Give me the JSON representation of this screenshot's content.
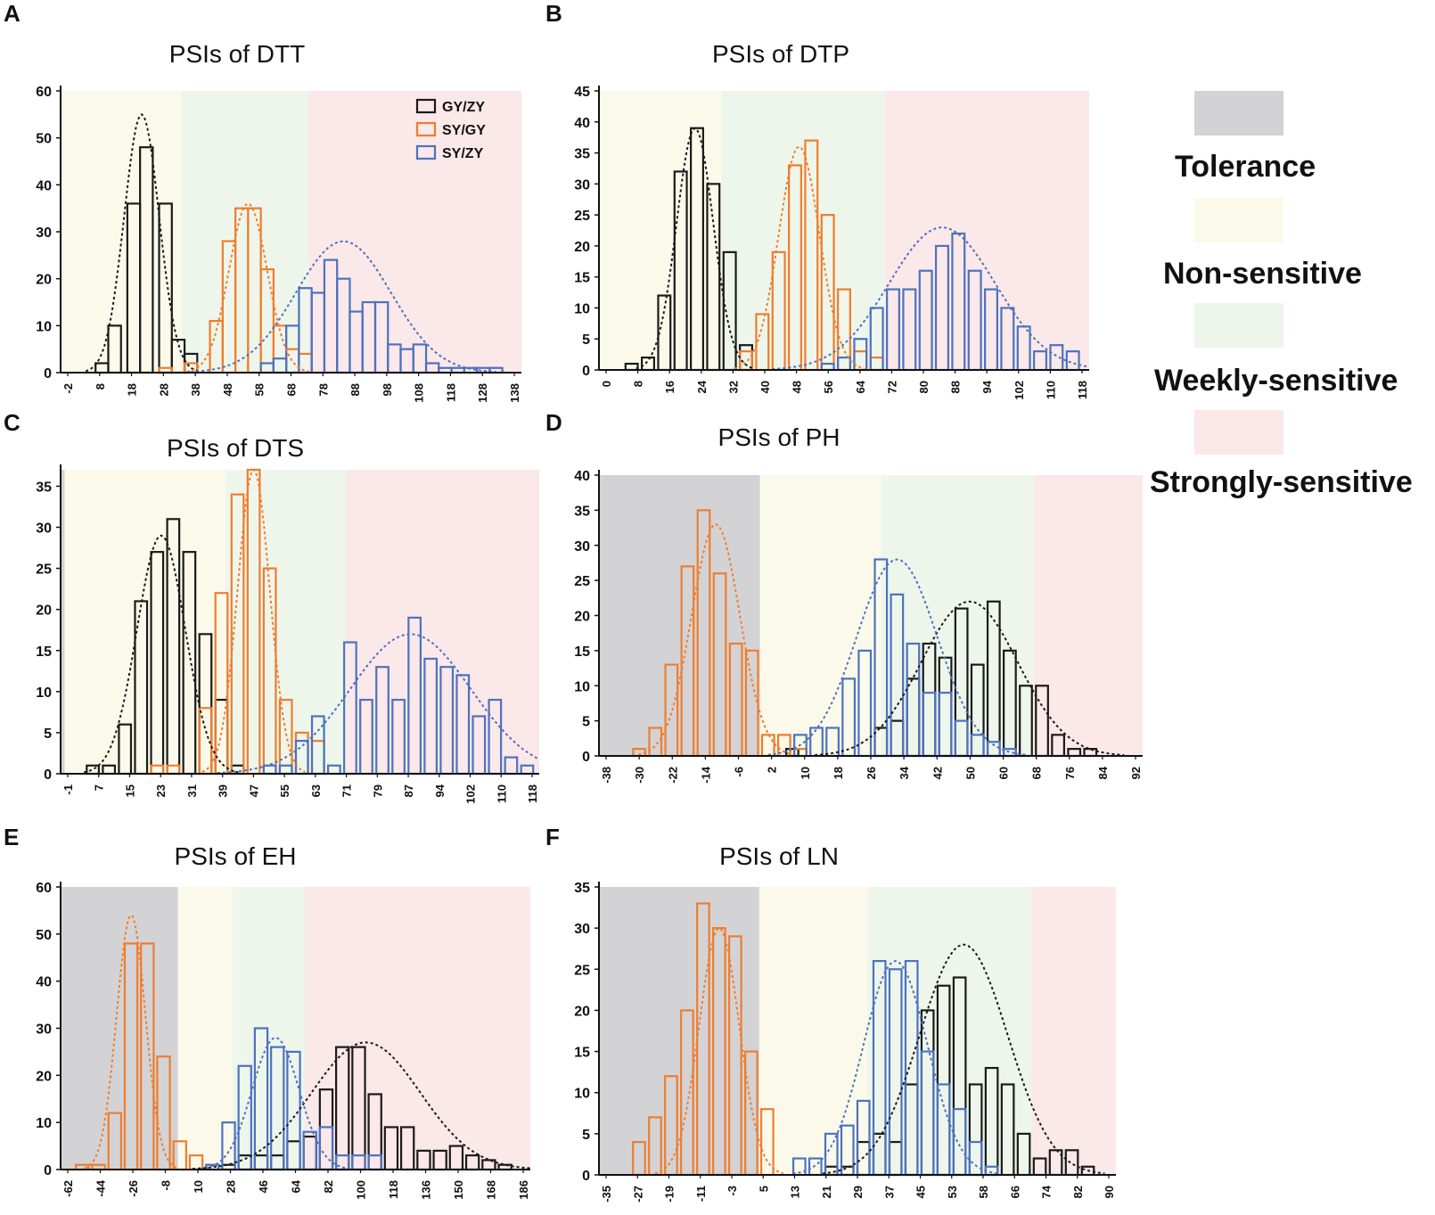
{
  "colors": {
    "tolerance_zone": "#d3d3d6",
    "nonsensitive_zone": "#fbfaea",
    "weekly_zone": "#eef6eb",
    "strongly_zone": "#fbe8e8",
    "gyzy": "#1a1a1a",
    "sygy": "#ef7d2d",
    "syzy": "#4c72c0"
  },
  "legend": {
    "items": [
      {
        "label": "Tolerance",
        "color": "#d3d3d6"
      },
      {
        "label": "Non-sensitive",
        "color": "#fbfaea"
      },
      {
        "label": "Weekly-sensitive",
        "color": "#eef6eb"
      },
      {
        "label": "Strongly-sensitive",
        "color": "#fbe8e8"
      }
    ]
  },
  "series_legend": [
    "GY/ZY",
    "SY/GY",
    "SY/ZY"
  ],
  "chart_data": [
    {
      "panel": "A",
      "type": "bar",
      "title": "PSIs of DTT",
      "ylim": [
        0,
        60
      ],
      "yticks": [
        0,
        10,
        20,
        30,
        40,
        50,
        60
      ],
      "xticks": [
        "-2",
        "8",
        "18",
        "28",
        "38",
        "48",
        "58",
        "68",
        "78",
        "88",
        "98",
        "108",
        "118",
        "128",
        "138"
      ],
      "xmin": -5,
      "xmax": 140,
      "bin_width": 4,
      "zones": [
        {
          "name": "Non-sensitive",
          "from": -5,
          "to": 33
        },
        {
          "name": "Weekly-sensitive",
          "from": 33,
          "to": 73
        },
        {
          "name": "Strongly-sensitive",
          "from": 73,
          "to": 140
        }
      ],
      "series": [
        {
          "name": "GY/ZY",
          "bins": [
            8,
            12,
            18,
            22,
            28,
            32,
            36
          ],
          "values": [
            2,
            10,
            36,
            48,
            36,
            7,
            4
          ],
          "curve": {
            "mean": 20.5,
            "sd": 5.5,
            "peak": 55
          }
        },
        {
          "name": "SY/GY",
          "bins": [
            28,
            36,
            44,
            48,
            52,
            56,
            60,
            64,
            68,
            72
          ],
          "values": [
            1,
            2,
            11,
            28,
            35,
            35,
            22,
            10,
            5,
            4
          ],
          "curve": {
            "mean": 54,
            "sd": 6,
            "peak": 36
          }
        },
        {
          "name": "SY/ZY",
          "bins": [
            60,
            64,
            68,
            72,
            76,
            80,
            84,
            88,
            92,
            96,
            100,
            104,
            108,
            112,
            116,
            120,
            124,
            128,
            132
          ],
          "values": [
            2,
            3,
            10,
            18,
            17,
            24,
            20,
            13,
            15,
            15,
            6,
            5,
            6,
            2,
            1,
            1,
            1,
            1,
            1
          ],
          "curve": {
            "mean": 84,
            "sd": 15,
            "peak": 28
          }
        }
      ]
    },
    {
      "panel": "B",
      "type": "bar",
      "title": "PSIs of DTP",
      "ylim": [
        0,
        45
      ],
      "yticks": [
        0,
        5,
        10,
        15,
        20,
        25,
        30,
        35,
        40,
        45
      ],
      "xticks": [
        "0",
        "8",
        "16",
        "24",
        "32",
        "40",
        "48",
        "56",
        "64",
        "72",
        "80",
        "88",
        "94",
        "102",
        "110",
        "118"
      ],
      "xmin": 0,
      "xmax": 120,
      "bin_width": 3,
      "zones": [
        {
          "name": "Non-sensitive",
          "from": 0,
          "to": 30
        },
        {
          "name": "Weekly-sensitive",
          "from": 30,
          "to": 70
        },
        {
          "name": "Strongly-sensitive",
          "from": 70,
          "to": 120
        }
      ],
      "series": [
        {
          "name": "GY/ZY",
          "bins": [
            8,
            12,
            16,
            20,
            24,
            28,
            32,
            36
          ],
          "values": [
            1,
            2,
            12,
            32,
            39,
            30,
            19,
            4
          ],
          "curve": {
            "mean": 23.5,
            "sd": 4.5,
            "peak": 39
          }
        },
        {
          "name": "SY/GY",
          "bins": [
            36,
            40,
            44,
            48,
            52,
            56,
            60,
            64,
            68
          ],
          "values": [
            3,
            9,
            19,
            33,
            37,
            25,
            13,
            3,
            2
          ],
          "curve": {
            "mean": 49,
            "sd": 5,
            "peak": 36
          }
        },
        {
          "name": "SY/ZY",
          "bins": [
            56,
            60,
            64,
            68,
            72,
            76,
            80,
            84,
            88,
            92,
            96,
            100,
            104,
            108,
            112,
            116
          ],
          "values": [
            1,
            2,
            5,
            10,
            13,
            13,
            16,
            20,
            22,
            16,
            13,
            10,
            7,
            3,
            4,
            3
          ],
          "curve": {
            "mean": 84,
            "sd": 13,
            "peak": 23
          }
        }
      ]
    },
    {
      "panel": "C",
      "type": "bar",
      "title": "PSIs of DTS",
      "ylim": [
        0,
        37
      ],
      "yticks": [
        0,
        5,
        10,
        15,
        20,
        25,
        30,
        35
      ],
      "xticks": [
        "-1",
        "7",
        "15",
        "23",
        "31",
        "39",
        "47",
        "55",
        "63",
        "71",
        "79",
        "87",
        "94",
        "102",
        "110",
        "118"
      ],
      "xmin": -1,
      "xmax": 118,
      "bin_width": 3,
      "zones": [
        {
          "name": "Tolerance",
          "from": -1,
          "to": 0
        },
        {
          "name": "Non-sensitive",
          "from": 0,
          "to": 40
        },
        {
          "name": "Weekly-sensitive",
          "from": 40,
          "to": 70
        },
        {
          "name": "Strongly-sensitive",
          "from": 70,
          "to": 118
        }
      ],
      "series": [
        {
          "name": "GY/ZY",
          "bins": [
            7,
            11,
            15,
            19,
            23,
            27,
            31,
            35,
            39,
            43
          ],
          "values": [
            1,
            1,
            6,
            21,
            27,
            31,
            27,
            17,
            9,
            1
          ],
          "curve": {
            "mean": 24,
            "sd": 6,
            "peak": 29
          }
        },
        {
          "name": "SY/GY",
          "bins": [
            23,
            27,
            35,
            39,
            43,
            47,
            51,
            55,
            59,
            63
          ],
          "values": [
            1,
            1,
            8,
            22,
            34,
            37,
            25,
            9,
            5,
            4
          ],
          "curve": {
            "mean": 47,
            "sd": 4,
            "peak": 37
          }
        },
        {
          "name": "SY/ZY",
          "bins": [
            51,
            55,
            59,
            63,
            67,
            71,
            75,
            79,
            83,
            87,
            91,
            95,
            99,
            103,
            107,
            111,
            115
          ],
          "values": [
            1,
            1,
            4,
            7,
            1,
            16,
            9,
            13,
            9,
            19,
            14,
            13,
            12,
            7,
            9,
            2,
            1
          ],
          "curve": {
            "mean": 86,
            "sd": 15,
            "peak": 17
          }
        }
      ]
    },
    {
      "panel": "D",
      "type": "bar",
      "title": "PSIs of PH",
      "ylim": [
        0,
        40
      ],
      "yticks": [
        0,
        5,
        10,
        15,
        20,
        25,
        30,
        35,
        40
      ],
      "xticks": [
        "-38",
        "-30",
        "-22",
        "-14",
        "-6",
        "2",
        "10",
        "18",
        "26",
        "34",
        "42",
        "50",
        "60",
        "68",
        "76",
        "84",
        "92"
      ],
      "xmin": -40,
      "xmax": 95,
      "bin_width": 3,
      "zones": [
        {
          "name": "Tolerance",
          "from": -40,
          "to": 0
        },
        {
          "name": "Non-sensitive",
          "from": 0,
          "to": 30
        },
        {
          "name": "Weekly-sensitive",
          "from": 30,
          "to": 68
        },
        {
          "name": "Strongly-sensitive",
          "from": 68,
          "to": 95
        }
      ],
      "series": [
        {
          "name": "GY/ZY",
          "bins": [
            8,
            30,
            34,
            38,
            42,
            46,
            50,
            54,
            58,
            62,
            66,
            70,
            74,
            78,
            82
          ],
          "values": [
            1,
            4,
            5,
            11,
            16,
            14,
            21,
            13,
            22,
            15,
            10,
            10,
            3,
            1,
            1
          ],
          "curve": {
            "mean": 52,
            "sd": 12,
            "peak": 22
          }
        },
        {
          "name": "SY/GY",
          "bins": [
            -30,
            -26,
            -22,
            -18,
            -14,
            -10,
            -6,
            -2,
            2,
            6,
            10
          ],
          "values": [
            1,
            4,
            13,
            27,
            35,
            26,
            16,
            15,
            3,
            3,
            1
          ],
          "curve": {
            "mean": -11,
            "sd": 6,
            "peak": 33
          }
        },
        {
          "name": "SY/ZY",
          "bins": [
            10,
            14,
            18,
            22,
            26,
            30,
            34,
            38,
            42,
            46,
            50,
            54,
            58,
            62
          ],
          "values": [
            3,
            4,
            4,
            11,
            15,
            28,
            23,
            16,
            9,
            9,
            5,
            3,
            2,
            1
          ],
          "curve": {
            "mean": 34,
            "sd": 10,
            "peak": 28
          }
        }
      ]
    },
    {
      "panel": "E",
      "type": "bar",
      "title": "PSIs of EH",
      "ylim": [
        0,
        60
      ],
      "yticks": [
        0,
        10,
        20,
        30,
        40,
        50,
        60
      ],
      "xticks": [
        "-62",
        "-44",
        "-26",
        "-8",
        "10",
        "28",
        "46",
        "64",
        "82",
        "100",
        "118",
        "136",
        "150",
        "168",
        "186"
      ],
      "xmin": -65,
      "xmax": 195,
      "bin_width": 7,
      "zones": [
        {
          "name": "Tolerance",
          "from": -65,
          "to": 0
        },
        {
          "name": "Non-sensitive",
          "from": 0,
          "to": 30
        },
        {
          "name": "Weekly-sensitive",
          "from": 30,
          "to": 70
        },
        {
          "name": "Strongly-sensitive",
          "from": 70,
          "to": 195
        }
      ],
      "series": [
        {
          "name": "GY/ZY",
          "bins": [
            28,
            37,
            46,
            55,
            64,
            73,
            82,
            91,
            100,
            109,
            118,
            127,
            136,
            145,
            154,
            163,
            172,
            181
          ],
          "values": [
            1,
            3,
            3,
            3,
            6,
            7,
            17,
            26,
            26,
            16,
            9,
            9,
            4,
            4,
            5,
            3,
            2,
            1
          ],
          "curve": {
            "mean": 104,
            "sd": 30,
            "peak": 27
          }
        },
        {
          "name": "SY/GY",
          "bins": [
            -53,
            -44,
            -35,
            -26,
            -17,
            -8,
            1,
            10,
            19
          ],
          "values": [
            1,
            1,
            12,
            48,
            48,
            24,
            6,
            3,
            1
          ],
          "curve": {
            "mean": -26,
            "sd": 8,
            "peak": 54
          }
        },
        {
          "name": "SY/ZY",
          "bins": [
            19,
            28,
            37,
            46,
            55,
            64,
            73,
            82,
            91,
            100,
            109
          ],
          "values": [
            1,
            10,
            22,
            30,
            26,
            25,
            8,
            9,
            3,
            3,
            3
          ],
          "curve": {
            "mean": 54,
            "sd": 13,
            "peak": 28
          }
        }
      ]
    },
    {
      "panel": "F",
      "type": "bar",
      "title": "PSIs of LN",
      "ylim": [
        0,
        35
      ],
      "yticks": [
        0,
        5,
        10,
        15,
        20,
        25,
        30,
        35
      ],
      "xticks": [
        "-35",
        "-27",
        "-19",
        "-11",
        "-3",
        "5",
        "13",
        "21",
        "29",
        "37",
        "45",
        "53",
        "58",
        "66",
        "74",
        "82",
        "90"
      ],
      "xmin": -37,
      "xmax": 92,
      "bin_width": 3,
      "zones": [
        {
          "name": "Tolerance",
          "from": -37,
          "to": 3
        },
        {
          "name": "Non-sensitive",
          "from": 3,
          "to": 30
        },
        {
          "name": "Weekly-sensitive",
          "from": 30,
          "to": 71
        },
        {
          "name": "Strongly-sensitive",
          "from": 71,
          "to": 92
        }
      ],
      "series": [
        {
          "name": "GY/ZY",
          "bins": [
            21,
            25,
            29,
            33,
            37,
            41,
            45,
            49,
            53,
            57,
            61,
            65,
            69,
            73,
            77,
            81,
            85
          ],
          "values": [
            1,
            1,
            4,
            5,
            4,
            11,
            20,
            23,
            24,
            11,
            13,
            11,
            5,
            2,
            3,
            3,
            1
          ],
          "curve": {
            "mean": 54,
            "sd": 11,
            "peak": 28
          }
        },
        {
          "name": "SY/GY",
          "bins": [
            -27,
            -23,
            -19,
            -15,
            -11,
            -7,
            -3,
            1,
            5
          ],
          "values": [
            4,
            7,
            12,
            20,
            33,
            30,
            29,
            15,
            8
          ],
          "curve": {
            "mean": -7,
            "sd": 5,
            "peak": 30
          }
        },
        {
          "name": "SY/ZY",
          "bins": [
            13,
            17,
            21,
            25,
            29,
            33,
            37,
            41,
            45,
            49,
            53,
            57,
            61
          ],
          "values": [
            2,
            2,
            5,
            6,
            9,
            26,
            25,
            26,
            15,
            11,
            8,
            4,
            1
          ],
          "curve": {
            "mean": 37,
            "sd": 8,
            "peak": 26
          }
        }
      ]
    }
  ]
}
